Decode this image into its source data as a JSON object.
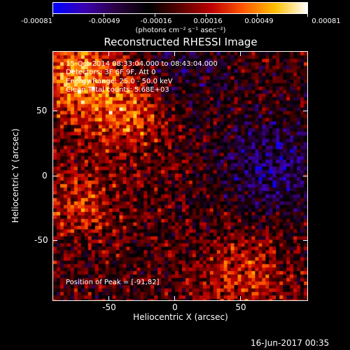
{
  "colorbar": {
    "tick_labels": [
      "-0.00081",
      "-0.00049",
      "-0.00016",
      "0.00016",
      "0.00049",
      "0.00081"
    ],
    "units": "(photons cm⁻² s⁻¹ asec⁻²)"
  },
  "title": "Reconstructed RHESSI Image",
  "info": {
    "time_range": "15-Oct-2014 08:33:04.000 to 08:43:04.000",
    "detectors": "Detectors: 3F 6F 9F, Att 0",
    "energy_range": "Energy Range: 25.0 - 50.0 keV",
    "clean_counts": "Clean    Total counts: 5.68E+03",
    "peak_position": "Position of Peak = [-91,82]"
  },
  "axes": {
    "xlabel": "Heliocentric X (arcsec)",
    "ylabel": "Heliocentric Y (arcsec)",
    "x_ticks": [
      "-50",
      "0",
      "50"
    ],
    "y_ticks": [
      "50",
      "0",
      "-50"
    ],
    "x_range": [
      -95,
      95
    ],
    "y_range": [
      -95,
      95
    ]
  },
  "footer": {
    "date": "16-Jun-2017 00:35"
  },
  "colors": {
    "background": "#000000",
    "foreground": "#ffffff",
    "colorscale": [
      "#0000ff",
      "#3b00b0",
      "#2a0040",
      "#000000",
      "#5a0000",
      "#c00000",
      "#ff5a00",
      "#ffc000",
      "#ffffff"
    ]
  }
}
